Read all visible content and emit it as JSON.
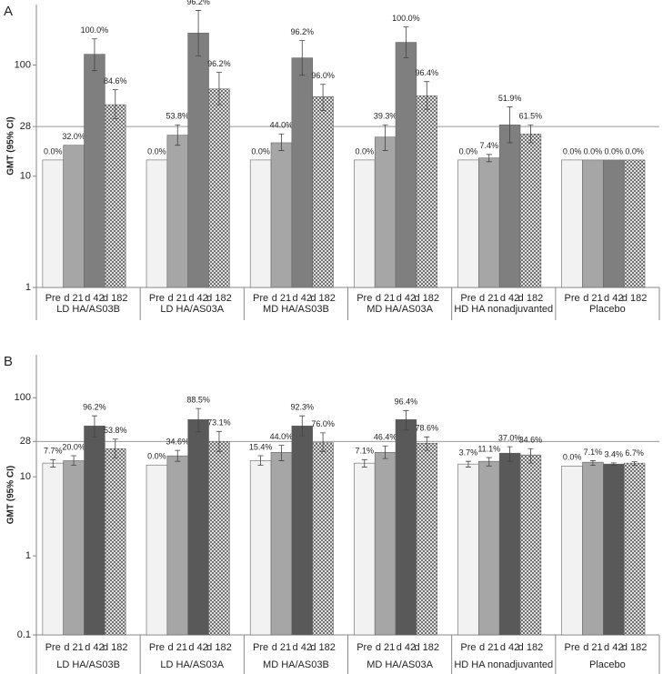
{
  "chart_data": [
    {
      "type": "bar",
      "panel_label": "A",
      "ylabel": "GMT (95% CI)",
      "log_scale": true,
      "ylim": [
        1,
        350
      ],
      "yticks": [
        1,
        10,
        28,
        100
      ],
      "reference_line": 28,
      "categories": [
        "LD HA/AS03B",
        "LD HA/AS03A",
        "MD HA/AS03B",
        "MD HA/AS03A",
        "HD HA nonadjuvanted",
        "Placebo"
      ],
      "series": [
        {
          "name": "Pre",
          "color": "#f2f2f2",
          "values": [
            14,
            14,
            14,
            14,
            14,
            14
          ],
          "err_low": [
            null,
            null,
            null,
            null,
            null,
            null
          ],
          "err_high": [
            null,
            null,
            null,
            null,
            null,
            null
          ],
          "annotations": [
            "0.0%",
            "0.0%",
            "0.0%",
            "0.0%",
            "0.0%",
            "0.0%"
          ]
        },
        {
          "name": "d 21",
          "color": "#a6a6a6",
          "values": [
            19,
            23.4,
            20,
            22.5,
            14.6,
            14
          ],
          "err_low": [
            null,
            19,
            17,
            17,
            13.5,
            null
          ],
          "err_high": [
            null,
            29,
            24,
            29,
            15.7,
            null
          ],
          "annotations": [
            "32.0%",
            "53.8%",
            "44.0%",
            "39.3%",
            "7.4%",
            "0.0%"
          ]
        },
        {
          "name": "d 42",
          "color": "#7f7f7f",
          "values": [
            125,
            194,
            116,
            160,
            29,
            14
          ],
          "err_low": [
            89,
            121,
            81,
            116,
            20,
            null
          ],
          "err_high": [
            172,
            310,
            166,
            220,
            42,
            null
          ],
          "annotations": [
            "100.0%",
            "96.2%",
            "96.2%",
            "100.0%",
            "51.9%",
            "0.0%"
          ]
        },
        {
          "name": "d 182",
          "color": "#595959",
          "hatch": true,
          "values": [
            44,
            61,
            52,
            53,
            24,
            14
          ],
          "err_low": [
            33,
            44,
            39,
            40,
            20,
            null
          ],
          "err_high": [
            60,
            86,
            67,
            71,
            29,
            null
          ],
          "annotations": [
            "84.6%",
            "96.2%",
            "96.0%",
            "96.4%",
            "61.5%",
            "0.0%"
          ]
        }
      ]
    },
    {
      "type": "bar",
      "panel_label": "B",
      "ylabel": "GMT (95% CI)",
      "log_scale": true,
      "ylim": [
        0.1,
        350
      ],
      "yticks": [
        0.1,
        1,
        10,
        28,
        100
      ],
      "reference_line": 28,
      "categories": [
        "LD HA/AS03B",
        "LD HA/AS03A",
        "MD HA/AS03B",
        "MD HA/AS03A",
        "HD HA nonadjuvanted",
        "Placebo"
      ],
      "series": [
        {
          "name": "Pre",
          "color": "#f2f2f2",
          "values": [
            14.9,
            14.1,
            16,
            14.9,
            14.5,
            13.7
          ],
          "err_low": [
            13.3,
            null,
            14,
            13.3,
            13.3,
            null
          ],
          "err_high": [
            16.5,
            null,
            18.5,
            16.5,
            15.7,
            null
          ],
          "annotations": [
            "7.7%",
            "0.0%",
            "15.4%",
            "7.1%",
            "3.7%",
            "0.0%"
          ]
        },
        {
          "name": "d 21",
          "color": "#a6a6a6",
          "values": [
            16,
            18.4,
            20.4,
            20.4,
            15.7,
            15.3
          ],
          "err_low": [
            14,
            15.7,
            16,
            17,
            13.7,
            14
          ],
          "err_high": [
            18.5,
            21.6,
            25,
            24.6,
            17.5,
            16
          ],
          "annotations": [
            "20.0%",
            "34.6%",
            "44.0%",
            "46.4%",
            "11.1%",
            "7.1%"
          ]
        },
        {
          "name": "d 42",
          "color": "#595959",
          "values": [
            44,
            53,
            44,
            53,
            19.9,
            14.5
          ],
          "err_low": [
            32,
            37,
            33,
            39,
            15.7,
            14
          ],
          "err_high": [
            59,
            73,
            59,
            69,
            24,
            15
          ],
          "annotations": [
            "96.2%",
            "88.5%",
            "92.3%",
            "96.4%",
            "37.0%",
            "3.4%"
          ]
        },
        {
          "name": "d 182",
          "color": "#595959",
          "hatch": true,
          "values": [
            22.7,
            28,
            27,
            26.6,
            18.9,
            14.9
          ],
          "err_low": [
            17.4,
            21,
            21,
            21.6,
            14.9,
            14
          ],
          "err_high": [
            30,
            37.5,
            36,
            32,
            22.7,
            15.5
          ],
          "annotations": [
            "53.8%",
            "73.1%",
            "76.0%",
            "78.6%",
            "34.6%",
            "6.7%"
          ]
        }
      ]
    }
  ]
}
